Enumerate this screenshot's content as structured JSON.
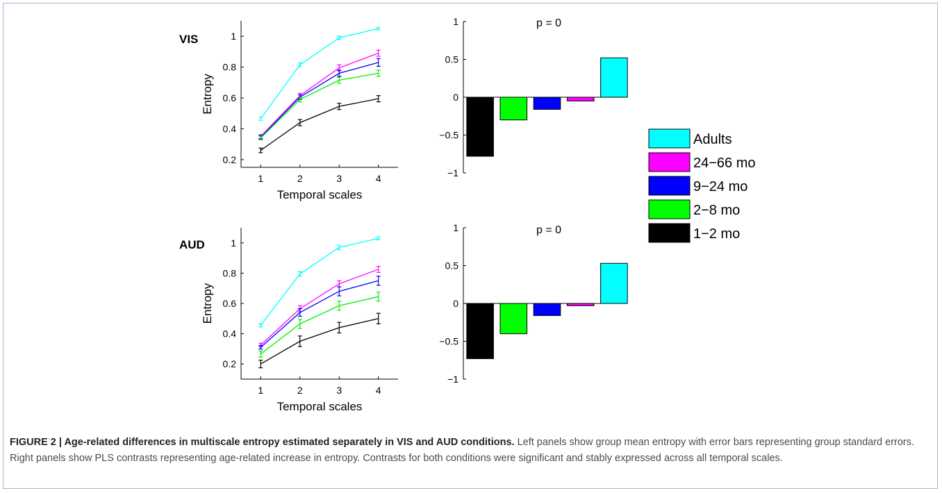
{
  "chart_data": [
    {
      "type": "line",
      "panel_label": "VIS",
      "xlabel": "Temporal scales",
      "ylabel": "Entropy",
      "x": [
        1,
        2,
        3,
        4
      ],
      "ylim": [
        0.15,
        1.1
      ],
      "yticks": [
        0.2,
        0.4,
        0.6,
        0.8,
        1
      ],
      "series": [
        {
          "name": "Adults",
          "color": "#00ffff",
          "values": [
            0.465,
            0.815,
            0.99,
            1.05
          ],
          "err": [
            0.01,
            0.012,
            0.012,
            0.008
          ]
        },
        {
          "name": "24–66 mo",
          "color": "#ff00ff",
          "values": [
            0.35,
            0.615,
            0.795,
            0.89
          ],
          "err": [
            0.012,
            0.015,
            0.02,
            0.02
          ]
        },
        {
          "name": "9–24 mo",
          "color": "#0000ff",
          "values": [
            0.345,
            0.605,
            0.76,
            0.83
          ],
          "err": [
            0.012,
            0.015,
            0.02,
            0.025
          ]
        },
        {
          "name": "2–8 mo",
          "color": "#00ee00",
          "values": [
            0.34,
            0.59,
            0.715,
            0.76
          ],
          "err": [
            0.012,
            0.015,
            0.02,
            0.02
          ]
        },
        {
          "name": "1–2 mo",
          "color": "#000000",
          "values": [
            0.26,
            0.44,
            0.545,
            0.595
          ],
          "err": [
            0.015,
            0.02,
            0.02,
            0.02
          ]
        }
      ]
    },
    {
      "type": "bar",
      "title": "p = 0",
      "ylim": [
        -1,
        1
      ],
      "yticks": [
        -1,
        -0.5,
        0,
        0.5,
        1
      ],
      "ytick_labels": [
        "−1",
        "−0.5",
        "0",
        "0.5",
        "1"
      ],
      "categories": [
        "1–2 mo",
        "2–8 mo",
        "9–24 mo",
        "24–66 mo",
        "Adults"
      ],
      "values": [
        -0.78,
        -0.3,
        -0.16,
        -0.05,
        0.52
      ],
      "colors": [
        "#000000",
        "#00ff00",
        "#0000ff",
        "#ff00ff",
        "#00ffff"
      ]
    },
    {
      "type": "line",
      "panel_label": "AUD",
      "xlabel": "Temporal scales",
      "ylabel": "Entropy",
      "x": [
        1,
        2,
        3,
        4
      ],
      "ylim": [
        0.1,
        1.1
      ],
      "yticks": [
        0.2,
        0.4,
        0.6,
        0.8,
        1
      ],
      "series": [
        {
          "name": "Adults",
          "color": "#00ffff",
          "values": [
            0.455,
            0.795,
            0.97,
            1.03
          ],
          "err": [
            0.01,
            0.015,
            0.015,
            0.01
          ]
        },
        {
          "name": "24–66 mo",
          "color": "#ff00ff",
          "values": [
            0.325,
            0.565,
            0.73,
            0.825
          ],
          "err": [
            0.012,
            0.02,
            0.02,
            0.02
          ]
        },
        {
          "name": "9–24 mo",
          "color": "#0000ff",
          "values": [
            0.31,
            0.54,
            0.68,
            0.75
          ],
          "err": [
            0.012,
            0.025,
            0.03,
            0.03
          ]
        },
        {
          "name": "2–8 mo",
          "color": "#00ee00",
          "values": [
            0.265,
            0.465,
            0.585,
            0.645
          ],
          "err": [
            0.02,
            0.03,
            0.03,
            0.03
          ]
        },
        {
          "name": "1–2 mo",
          "color": "#000000",
          "values": [
            0.2,
            0.35,
            0.44,
            0.5
          ],
          "err": [
            0.025,
            0.035,
            0.035,
            0.035
          ]
        }
      ]
    },
    {
      "type": "bar",
      "title": "p = 0",
      "ylim": [
        -1,
        1
      ],
      "yticks": [
        -1,
        -0.5,
        0,
        0.5,
        1
      ],
      "ytick_labels": [
        "−1",
        "−0.5",
        "0",
        "0.5",
        "1"
      ],
      "categories": [
        "1–2 mo",
        "2–8 mo",
        "9–24 mo",
        "24–66 mo",
        "Adults"
      ],
      "values": [
        -0.73,
        -0.4,
        -0.16,
        -0.03,
        0.53
      ],
      "colors": [
        "#000000",
        "#00ff00",
        "#0000ff",
        "#ff00ff",
        "#00ffff"
      ]
    }
  ],
  "legend": [
    {
      "label": "Adults",
      "color": "#00ffff"
    },
    {
      "label": "24−66 mo",
      "color": "#ff00ff"
    },
    {
      "label": "9−24 mo",
      "color": "#0000ff"
    },
    {
      "label": "2−8 mo",
      "color": "#00ff00"
    },
    {
      "label": "1−2 mo",
      "color": "#000000"
    }
  ],
  "caption": {
    "lead": "FIGURE 2 | Age-related differences in multiscale entropy estimated separately in VIS and AUD conditions.",
    "body": " Left panels show group mean entropy with error bars representing group standard errors. Right panels show PLS contrasts representing age-related increase in entropy. Contrasts for both conditions were significant and stably expressed across all temporal scales."
  }
}
